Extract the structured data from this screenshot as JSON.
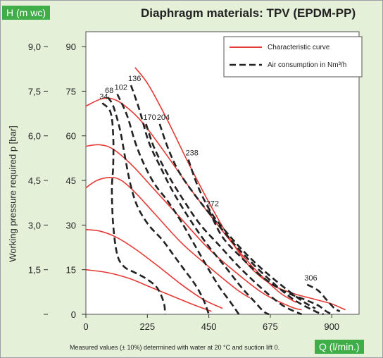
{
  "title": "Diaphragm materials: TPV (EPDM-PP)",
  "y_axis_badge": "H (m wc)",
  "x_axis_badge": "Q (l/min.)",
  "ylabel": "Working pressure required p [bar]",
  "footnote": "Measured values (± 10%) determined with water at 20 °C and suction lift 0.",
  "legend": {
    "characteristic": "Characteristic curve",
    "air": "Air consumption in Nm³/h"
  },
  "colors": {
    "characteristic": "#e53935",
    "air": "#222222",
    "badge": "#3fae49",
    "background": "#e4f0d8"
  },
  "chart_data": {
    "type": "line",
    "xlim": [
      0,
      1000
    ],
    "ylim": [
      0,
      95
    ],
    "x_ticks": [
      "0",
      "225",
      "450",
      "675",
      "900"
    ],
    "x_tick_values": [
      0,
      225,
      450,
      675,
      900
    ],
    "y_ticks_mwc": [
      "0",
      "15",
      "30",
      "45",
      "60",
      "75",
      "90"
    ],
    "y_ticks_bar": [
      "",
      "1,5",
      "3,0",
      "4,5",
      "6,0",
      "7,5",
      "9,0"
    ],
    "y_tick_values": [
      0,
      15,
      30,
      45,
      60,
      75,
      90
    ],
    "characteristic_curves": [
      [
        [
          0,
          70
        ],
        [
          60,
          72.5
        ],
        [
          110,
          72
        ],
        [
          170,
          68
        ],
        [
          220,
          63
        ],
        [
          300,
          53
        ],
        [
          400,
          40
        ],
        [
          500,
          28
        ],
        [
          600,
          17
        ],
        [
          700,
          8
        ],
        [
          750,
          5
        ],
        [
          770,
          4
        ]
      ],
      [
        [
          0,
          56.5
        ],
        [
          50,
          57
        ],
        [
          100,
          55.5
        ],
        [
          170,
          50
        ],
        [
          250,
          42
        ],
        [
          350,
          32
        ],
        [
          450,
          22
        ],
        [
          550,
          14
        ],
        [
          650,
          7
        ],
        [
          750,
          2.5
        ],
        [
          790,
          1.5
        ]
      ],
      [
        [
          0,
          42.5
        ],
        [
          40,
          45
        ],
        [
          90,
          46
        ],
        [
          130,
          45
        ],
        [
          180,
          41
        ],
        [
          250,
          34
        ],
        [
          350,
          24
        ],
        [
          450,
          16
        ],
        [
          550,
          8.5
        ],
        [
          600,
          5.5
        ]
      ],
      [
        [
          0,
          28.5
        ],
        [
          50,
          28
        ],
        [
          110,
          26
        ],
        [
          180,
          22
        ],
        [
          260,
          16.5
        ],
        [
          350,
          10
        ],
        [
          430,
          5
        ],
        [
          500,
          2
        ]
      ],
      [
        [
          0,
          15
        ],
        [
          80,
          14
        ],
        [
          160,
          12
        ],
        [
          240,
          9
        ],
        [
          320,
          6
        ],
        [
          400,
          3
        ],
        [
          460,
          1
        ]
      ],
      [
        [
          180,
          83
        ],
        [
          230,
          77
        ],
        [
          300,
          65
        ],
        [
          380,
          50
        ],
        [
          460,
          36
        ],
        [
          530,
          25
        ],
        [
          600,
          16
        ],
        [
          680,
          10
        ],
        [
          760,
          7
        ],
        [
          840,
          5
        ],
        [
          900,
          3.5
        ],
        [
          950,
          1.5
        ]
      ]
    ],
    "air_consumption_curves": [
      {
        "label": "34",
        "points": [
          [
            60,
            71
          ],
          [
            90,
            68
          ],
          [
            100,
            60
          ],
          [
            100,
            50
          ],
          [
            95,
            42
          ],
          [
            100,
            30
          ],
          [
            115,
            20
          ],
          [
            140,
            16
          ],
          [
            180,
            14
          ],
          [
            220,
            12
          ],
          [
            260,
            9
          ],
          [
            285,
            4
          ],
          [
            290,
            0
          ]
        ]
      },
      {
        "label": "68",
        "points": [
          [
            80,
            73
          ],
          [
            100,
            70
          ],
          [
            125,
            62
          ],
          [
            145,
            52
          ],
          [
            165,
            43
          ],
          [
            190,
            36
          ],
          [
            230,
            30
          ],
          [
            280,
            25
          ],
          [
            320,
            20
          ],
          [
            360,
            15
          ],
          [
            400,
            10
          ],
          [
            430,
            5
          ],
          [
            450,
            0
          ]
        ]
      },
      {
        "label": "102",
        "points": [
          [
            115,
            74
          ],
          [
            150,
            67
          ],
          [
            180,
            58
          ],
          [
            210,
            51
          ],
          [
            250,
            44
          ],
          [
            300,
            38
          ],
          [
            350,
            31
          ],
          [
            400,
            23
          ],
          [
            450,
            15
          ],
          [
            490,
            9
          ],
          [
            530,
            4
          ],
          [
            560,
            0
          ]
        ]
      },
      {
        "label": "136",
        "points": [
          [
            165,
            77
          ],
          [
            195,
            69
          ],
          [
            230,
            58
          ],
          [
            270,
            50
          ],
          [
            320,
            41
          ],
          [
            380,
            32
          ],
          [
            440,
            24
          ],
          [
            510,
            16
          ],
          [
            570,
            9
          ],
          [
            620,
            4
          ],
          [
            650,
            1
          ],
          [
            670,
            0
          ]
        ]
      },
      {
        "label": "170",
        "points": [
          [
            220,
            64
          ],
          [
            250,
            56
          ],
          [
            300,
            47
          ],
          [
            360,
            38
          ],
          [
            420,
            30
          ],
          [
            490,
            23
          ],
          [
            560,
            16
          ],
          [
            640,
            9
          ],
          [
            720,
            3
          ],
          [
            790,
            0
          ]
        ]
      },
      {
        "label": "204",
        "points": [
          [
            270,
            64
          ],
          [
            300,
            56
          ],
          [
            340,
            48
          ],
          [
            400,
            40
          ],
          [
            460,
            33
          ],
          [
            530,
            25
          ],
          [
            600,
            18
          ],
          [
            680,
            11
          ],
          [
            760,
            5
          ],
          [
            840,
            1
          ],
          [
            870,
            0
          ]
        ]
      },
      {
        "label": "238",
        "points": [
          [
            375,
            52
          ],
          [
            410,
            43
          ],
          [
            460,
            34
          ],
          [
            520,
            27
          ],
          [
            590,
            20
          ],
          [
            660,
            14
          ],
          [
            740,
            8
          ],
          [
            800,
            4
          ],
          [
            840,
            2
          ]
        ]
      },
      {
        "label": "272",
        "points": [
          [
            450,
            35
          ],
          [
            500,
            26
          ],
          [
            570,
            19
          ],
          [
            640,
            13
          ],
          [
            720,
            8
          ],
          [
            800,
            5
          ],
          [
            850,
            3
          ],
          [
            880,
            1
          ],
          [
            900,
            0
          ]
        ]
      },
      {
        "label": "306",
        "points": [
          [
            810,
            10
          ],
          [
            850,
            8
          ],
          [
            880,
            5
          ],
          [
            910,
            2
          ],
          [
            930,
            1
          ]
        ]
      }
    ],
    "grid": false,
    "legend_position": "top-right"
  }
}
